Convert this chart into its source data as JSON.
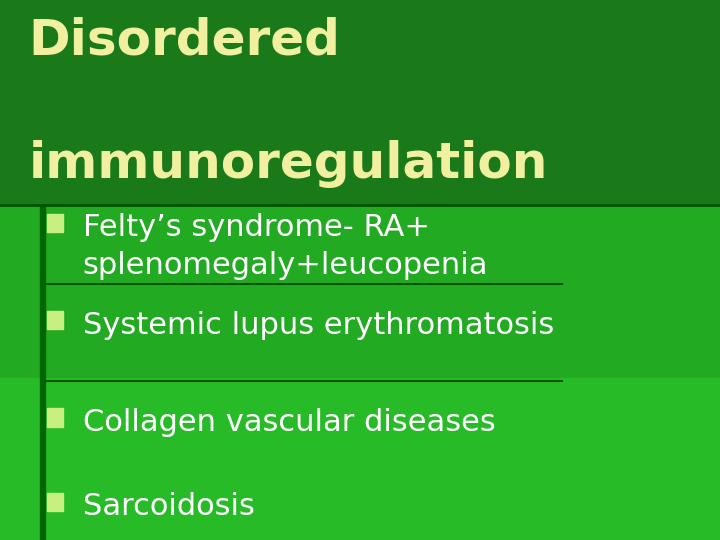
{
  "title_line1": "Disordered",
  "title_line2": "immunoregulation",
  "bullet_items": [
    "Felty’s syndrome- RA+\nsplenomegaly+leucopenia",
    "Systemic lupus erythromatosis",
    "Collagen vascular diseases",
    "Sarcoidosis"
  ],
  "title_color": "#f0f0a0",
  "bullet_color": "#ffffff",
  "bullet_marker_color": "#c8f080",
  "title_fontsize": 36,
  "bullet_fontsize": 22,
  "figsize": [
    7.2,
    5.4
  ],
  "dpi": 100
}
